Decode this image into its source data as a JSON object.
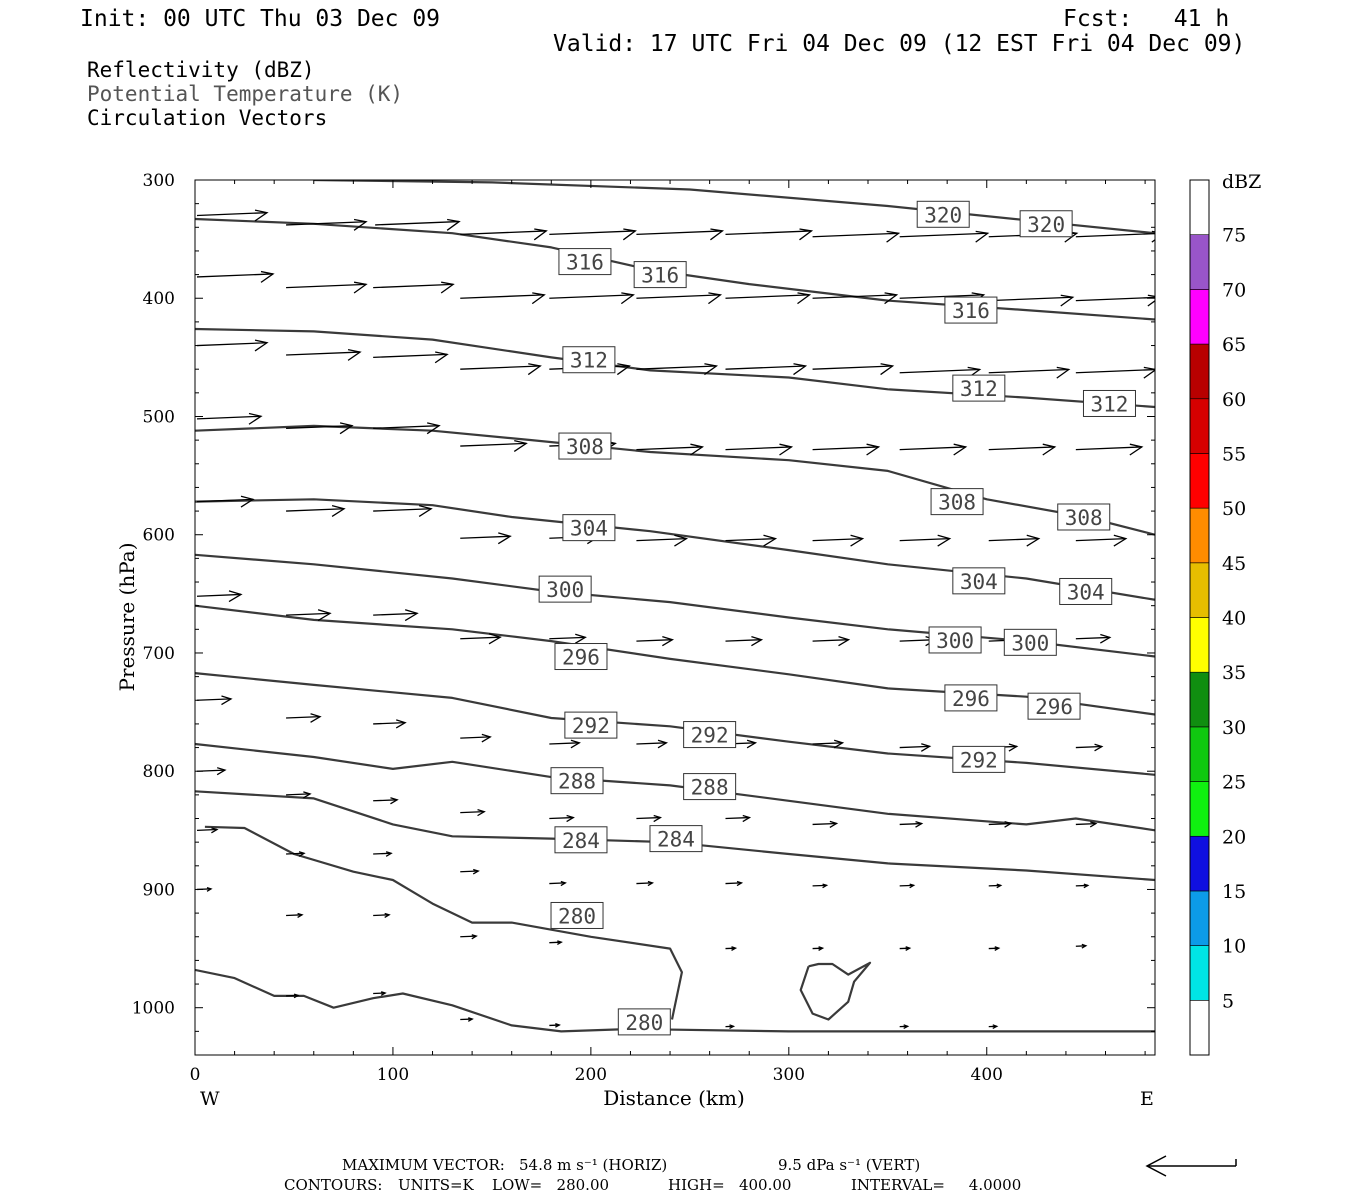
{
  "header": {
    "init": "Init: 00 UTC Thu 03 Dec 09",
    "fcst": "Fcst:   41 h",
    "valid": "Valid: 17 UTC Fri 04 Dec 09 (12 EST Fri 04 Dec 09)",
    "field_reflectivity": "Reflectivity (dBZ)",
    "field_theta": "Potential Temperature (K)",
    "field_vectors": "Circulation Vectors"
  },
  "footer": {
    "max_vector_label": "MAXIMUM VECTOR:",
    "max_vector_horiz": "54.8 m s⁻¹ (HORIZ)",
    "max_vector_vert": "9.5 dPa s⁻¹ (VERT)",
    "contours_label": "CONTOURS:",
    "units": "UNITS=K",
    "low": "LOW=   280.00",
    "high": "HIGH=   400.00",
    "interval": "INTERVAL=     4.0000"
  },
  "chart_data": {
    "type": "line",
    "xlabel": "Distance (km)",
    "ylabel": "Pressure (hPa)",
    "xlim": [
      0,
      485
    ],
    "ylim": [
      1040,
      300
    ],
    "xticks": [
      0,
      100,
      200,
      300,
      400
    ],
    "yticks": [
      300,
      400,
      500,
      600,
      700,
      800,
      900,
      1000
    ],
    "x_end_labels": {
      "left": "W",
      "right": "E"
    },
    "colorbar": {
      "title": "dBZ",
      "range": [
        0,
        80
      ],
      "levels": [
        5,
        10,
        15,
        20,
        25,
        30,
        35,
        40,
        45,
        50,
        55,
        60,
        65,
        70,
        75
      ],
      "colors": [
        "#ffffff",
        "#00e5e5",
        "#0c9be8",
        "#1010e0",
        "#10f010",
        "#10c810",
        "#108e10",
        "#ffff00",
        "#e6be00",
        "#ff8c00",
        "#ff0000",
        "#d60000",
        "#b80000",
        "#ff00ff",
        "#9955c9",
        "#ffffff"
      ]
    },
    "contour_color": "#3a3a3a",
    "series": [
      {
        "name": "320",
        "x": [
          60,
          150,
          250,
          350,
          420,
          485
        ],
        "y": [
          300,
          302,
          308,
          322,
          334,
          345
        ],
        "labels": [
          {
            "text": "320",
            "x": 378,
            "y": 329
          },
          {
            "text": "320",
            "x": 430,
            "y": 337
          }
        ]
      },
      {
        "name": "316",
        "x": [
          0,
          60,
          130,
          180,
          230,
          280,
          350,
          420,
          485
        ],
        "y": [
          333,
          337,
          345,
          357,
          376,
          388,
          402,
          410,
          418
        ],
        "labels": [
          {
            "text": "316",
            "x": 197,
            "y": 369
          },
          {
            "text": "316",
            "x": 235,
            "y": 380
          },
          {
            "text": "316",
            "x": 392,
            "y": 410
          }
        ]
      },
      {
        "name": "312",
        "x": [
          0,
          60,
          120,
          180,
          230,
          300,
          350,
          420,
          485
        ],
        "y": [
          426,
          428,
          435,
          450,
          461,
          467,
          477,
          484,
          492
        ],
        "labels": [
          {
            "text": "312",
            "x": 199,
            "y": 452
          },
          {
            "text": "312",
            "x": 396,
            "y": 476
          },
          {
            "text": "312",
            "x": 462,
            "y": 489
          }
        ]
      },
      {
        "name": "308",
        "x": [
          0,
          60,
          120,
          170,
          230,
          300,
          350,
          400,
          450,
          485
        ],
        "y": [
          512,
          508,
          512,
          520,
          530,
          537,
          546,
          570,
          585,
          600
        ],
        "labels": [
          {
            "text": "308",
            "x": 197,
            "y": 525
          },
          {
            "text": "308",
            "x": 385,
            "y": 572
          },
          {
            "text": "308",
            "x": 449,
            "y": 585
          }
        ]
      },
      {
        "name": "304",
        "x": [
          0,
          60,
          120,
          160,
          230,
          300,
          350,
          420,
          485
        ],
        "y": [
          572,
          570,
          575,
          585,
          597,
          613,
          625,
          637,
          655
        ],
        "labels": [
          {
            "text": "304",
            "x": 199,
            "y": 594
          },
          {
            "text": "304",
            "x": 396,
            "y": 639
          },
          {
            "text": "304",
            "x": 450,
            "y": 648
          }
        ]
      },
      {
        "name": "300",
        "x": [
          0,
          60,
          130,
          180,
          240,
          300,
          350,
          420,
          485
        ],
        "y": [
          617,
          625,
          637,
          648,
          657,
          670,
          680,
          690,
          703
        ],
        "labels": [
          {
            "text": "300",
            "x": 187,
            "y": 646
          },
          {
            "text": "300",
            "x": 384,
            "y": 689
          },
          {
            "text": "300",
            "x": 422,
            "y": 691
          }
        ]
      },
      {
        "name": "296",
        "x": [
          0,
          60,
          130,
          180,
          240,
          300,
          350,
          420,
          485
        ],
        "y": [
          660,
          672,
          680,
          690,
          705,
          718,
          730,
          737,
          752
        ],
        "labels": [
          {
            "text": "296",
            "x": 195,
            "y": 703
          },
          {
            "text": "296",
            "x": 392,
            "y": 738
          },
          {
            "text": "296",
            "x": 434,
            "y": 745
          }
        ]
      },
      {
        "name": "292",
        "x": [
          0,
          60,
          130,
          180,
          240,
          300,
          350,
          420,
          485
        ],
        "y": [
          717,
          727,
          738,
          755,
          762,
          775,
          785,
          793,
          803
        ],
        "labels": [
          {
            "text": "292",
            "x": 200,
            "y": 761
          },
          {
            "text": "292",
            "x": 260,
            "y": 769
          },
          {
            "text": "292",
            "x": 396,
            "y": 790
          }
        ]
      },
      {
        "name": "288",
        "x": [
          0,
          60,
          100,
          130,
          180,
          240,
          300,
          350,
          420,
          445,
          485
        ],
        "y": [
          777,
          788,
          798,
          792,
          805,
          812,
          825,
          836,
          845,
          840,
          850
        ],
        "labels": [
          {
            "text": "288",
            "x": 193,
            "y": 808
          },
          {
            "text": "288",
            "x": 260,
            "y": 813
          }
        ]
      },
      {
        "name": "284",
        "x": [
          0,
          60,
          100,
          130,
          180,
          240,
          300,
          350,
          420,
          485
        ],
        "y": [
          817,
          823,
          845,
          855,
          857,
          860,
          870,
          878,
          884,
          892
        ],
        "labels": [
          {
            "text": "284",
            "x": 195,
            "y": 858
          },
          {
            "text": "284",
            "x": 243,
            "y": 857
          }
        ]
      },
      {
        "name": "280",
        "x": [
          5,
          25,
          50,
          80,
          100,
          120,
          140,
          160,
          200,
          240,
          246,
          241
        ],
        "y": [
          847,
          848,
          870,
          885,
          892,
          912,
          928,
          928,
          940,
          950,
          970,
          1010
        ],
        "labels": [
          {
            "text": "280",
            "x": 193,
            "y": 922
          }
        ]
      },
      {
        "name": "280b",
        "x": [
          0,
          20,
          40,
          55,
          70,
          90,
          105,
          130,
          160,
          185,
          220,
          300,
          400,
          485
        ],
        "y": [
          968,
          975,
          990,
          990,
          1000,
          992,
          988,
          998,
          1015,
          1020,
          1018,
          1020,
          1020,
          1020
        ],
        "labels": [
          {
            "text": "280",
            "x": 227,
            "y": 1012
          }
        ]
      },
      {
        "name": "closed",
        "x": [
          310,
          306,
          312,
          320,
          330,
          333,
          341,
          330,
          322,
          315,
          310
        ],
        "y": [
          965,
          985,
          1005,
          1010,
          995,
          978,
          962,
          972,
          963,
          963,
          965
        ],
        "labels": []
      }
    ],
    "vectors": [
      {
        "x": 0,
        "p": 330,
        "u": 35
      },
      {
        "x": 45,
        "p": 338,
        "u": 40
      },
      {
        "x": 90,
        "p": 338,
        "u": 42
      },
      {
        "x": 133,
        "p": 346,
        "u": 43
      },
      {
        "x": 178,
        "p": 346,
        "u": 43
      },
      {
        "x": 222,
        "p": 346,
        "u": 43
      },
      {
        "x": 267,
        "p": 346,
        "u": 43
      },
      {
        "x": 311,
        "p": 348,
        "u": 43
      },
      {
        "x": 355,
        "p": 348,
        "u": 44
      },
      {
        "x": 400,
        "p": 348,
        "u": 44
      },
      {
        "x": 444,
        "p": 348,
        "u": 44
      },
      {
        "x": 0,
        "p": 382,
        "u": 38
      },
      {
        "x": 45,
        "p": 391,
        "u": 40
      },
      {
        "x": 89,
        "p": 391,
        "u": 40
      },
      {
        "x": 133,
        "p": 400,
        "u": 42
      },
      {
        "x": 178,
        "p": 400,
        "u": 42
      },
      {
        "x": 222,
        "p": 400,
        "u": 42
      },
      {
        "x": 267,
        "p": 400,
        "u": 42
      },
      {
        "x": 311,
        "p": 400,
        "u": 42
      },
      {
        "x": 355,
        "p": 400,
        "u": 42
      },
      {
        "x": 400,
        "p": 402,
        "u": 42
      },
      {
        "x": 444,
        "p": 402,
        "u": 42
      },
      {
        "x": 0,
        "p": 440,
        "u": 35
      },
      {
        "x": 45,
        "p": 448,
        "u": 37
      },
      {
        "x": 89,
        "p": 450,
        "u": 37
      },
      {
        "x": 133,
        "p": 460,
        "u": 40
      },
      {
        "x": 178,
        "p": 460,
        "u": 40
      },
      {
        "x": 222,
        "p": 460,
        "u": 40
      },
      {
        "x": 267,
        "p": 460,
        "u": 40
      },
      {
        "x": 311,
        "p": 460,
        "u": 40
      },
      {
        "x": 355,
        "p": 463,
        "u": 40
      },
      {
        "x": 400,
        "p": 463,
        "u": 40
      },
      {
        "x": 444,
        "p": 463,
        "u": 40
      },
      {
        "x": 0,
        "p": 502,
        "u": 32
      },
      {
        "x": 45,
        "p": 510,
        "u": 33
      },
      {
        "x": 89,
        "p": 510,
        "u": 33
      },
      {
        "x": 133,
        "p": 525,
        "u": 33
      },
      {
        "x": 178,
        "p": 525,
        "u": 33
      },
      {
        "x": 222,
        "p": 528,
        "u": 33
      },
      {
        "x": 267,
        "p": 528,
        "u": 33
      },
      {
        "x": 311,
        "p": 528,
        "u": 33
      },
      {
        "x": 355,
        "p": 528,
        "u": 33
      },
      {
        "x": 400,
        "p": 528,
        "u": 33
      },
      {
        "x": 444,
        "p": 528,
        "u": 33
      },
      {
        "x": 0,
        "p": 572,
        "u": 28
      },
      {
        "x": 45,
        "p": 580,
        "u": 29
      },
      {
        "x": 89,
        "p": 580,
        "u": 29
      },
      {
        "x": 133,
        "p": 603,
        "u": 25
      },
      {
        "x": 178,
        "p": 603,
        "u": 25
      },
      {
        "x": 222,
        "p": 605,
        "u": 25
      },
      {
        "x": 267,
        "p": 605,
        "u": 25
      },
      {
        "x": 311,
        "p": 605,
        "u": 25
      },
      {
        "x": 355,
        "p": 605,
        "u": 25
      },
      {
        "x": 400,
        "p": 605,
        "u": 25
      },
      {
        "x": 444,
        "p": 605,
        "u": 25
      },
      {
        "x": 0,
        "p": 652,
        "u": 22
      },
      {
        "x": 45,
        "p": 668,
        "u": 22
      },
      {
        "x": 89,
        "p": 668,
        "u": 22
      },
      {
        "x": 133,
        "p": 688,
        "u": 20
      },
      {
        "x": 178,
        "p": 688,
        "u": 18
      },
      {
        "x": 222,
        "p": 690,
        "u": 18
      },
      {
        "x": 267,
        "p": 690,
        "u": 18
      },
      {
        "x": 311,
        "p": 690,
        "u": 18
      },
      {
        "x": 355,
        "p": 690,
        "u": 18
      },
      {
        "x": 400,
        "p": 690,
        "u": 18
      },
      {
        "x": 444,
        "p": 688,
        "u": 17
      },
      {
        "x": 0,
        "p": 740,
        "u": 17
      },
      {
        "x": 45,
        "p": 755,
        "u": 17
      },
      {
        "x": 89,
        "p": 760,
        "u": 16
      },
      {
        "x": 133,
        "p": 772,
        "u": 15
      },
      {
        "x": 178,
        "p": 777,
        "u": 15
      },
      {
        "x": 222,
        "p": 777,
        "u": 15
      },
      {
        "x": 267,
        "p": 777,
        "u": 15
      },
      {
        "x": 311,
        "p": 777,
        "u": 15
      },
      {
        "x": 355,
        "p": 780,
        "u": 15
      },
      {
        "x": 400,
        "p": 780,
        "u": 14
      },
      {
        "x": 444,
        "p": 780,
        "u": 13
      },
      {
        "x": 0,
        "p": 800,
        "u": 14
      },
      {
        "x": 45,
        "p": 820,
        "u": 12
      },
      {
        "x": 89,
        "p": 825,
        "u": 12
      },
      {
        "x": 133,
        "p": 835,
        "u": 12
      },
      {
        "x": 178,
        "p": 840,
        "u": 12
      },
      {
        "x": 222,
        "p": 840,
        "u": 12
      },
      {
        "x": 267,
        "p": 840,
        "u": 12
      },
      {
        "x": 311,
        "p": 845,
        "u": 12
      },
      {
        "x": 355,
        "p": 845,
        "u": 11
      },
      {
        "x": 400,
        "p": 845,
        "u": 11
      },
      {
        "x": 444,
        "p": 845,
        "u": 10
      },
      {
        "x": 0,
        "p": 850,
        "u": 10
      },
      {
        "x": 45,
        "p": 870,
        "u": 9
      },
      {
        "x": 89,
        "p": 870,
        "u": 9
      },
      {
        "x": 133,
        "p": 885,
        "u": 9
      },
      {
        "x": 178,
        "p": 895,
        "u": 8
      },
      {
        "x": 222,
        "p": 895,
        "u": 8
      },
      {
        "x": 267,
        "p": 895,
        "u": 8
      },
      {
        "x": 311,
        "p": 897,
        "u": 7
      },
      {
        "x": 355,
        "p": 897,
        "u": 7
      },
      {
        "x": 400,
        "p": 897,
        "u": 6
      },
      {
        "x": 444,
        "p": 897,
        "u": 6
      },
      {
        "x": 0,
        "p": 900,
        "u": 7
      },
      {
        "x": 45,
        "p": 922,
        "u": 8
      },
      {
        "x": 89,
        "p": 922,
        "u": 8
      },
      {
        "x": 133,
        "p": 940,
        "u": 8
      },
      {
        "x": 178,
        "p": 945,
        "u": 6
      },
      {
        "x": 267,
        "p": 950,
        "u": 5
      },
      {
        "x": 311,
        "p": 950,
        "u": 5
      },
      {
        "x": 355,
        "p": 950,
        "u": 5
      },
      {
        "x": 400,
        "p": 950,
        "u": 5
      },
      {
        "x": 444,
        "p": 948,
        "u": 5
      },
      {
        "x": 45,
        "p": 990,
        "u": 6
      },
      {
        "x": 89,
        "p": 988,
        "u": 6
      },
      {
        "x": 133,
        "p": 1010,
        "u": 6
      },
      {
        "x": 178,
        "p": 1015,
        "u": 5
      },
      {
        "x": 267,
        "p": 1016,
        "u": 4
      },
      {
        "x": 355,
        "p": 1016,
        "u": 4
      },
      {
        "x": 400,
        "p": 1016,
        "u": 4
      }
    ]
  }
}
